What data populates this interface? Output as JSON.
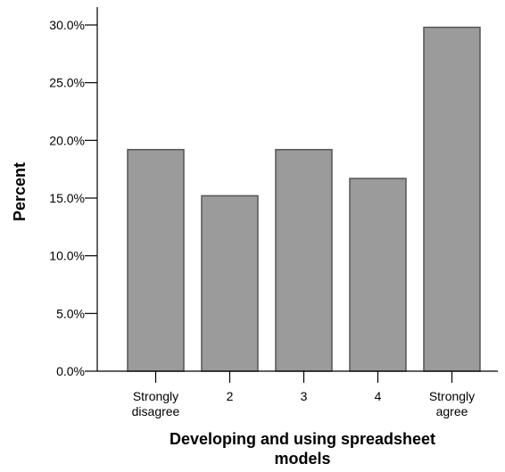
{
  "chart_data": {
    "type": "bar",
    "title": "",
    "categories": [
      [
        "Strongly",
        "disagree"
      ],
      [
        "2"
      ],
      [
        "3"
      ],
      [
        "4"
      ],
      [
        "Strongly",
        "agree"
      ]
    ],
    "values": [
      19.2,
      15.2,
      19.2,
      16.7,
      29.8
    ],
    "xlabel": [
      "Developing and using spreadsheet",
      "models"
    ],
    "ylabel": "Percent",
    "ylim": [
      0,
      30
    ],
    "yticks": [
      {
        "value": 0,
        "label": "0.0%"
      },
      {
        "value": 5,
        "label": "5.0%"
      },
      {
        "value": 10,
        "label": "10.0%"
      },
      {
        "value": 15,
        "label": "15.0%"
      },
      {
        "value": 20,
        "label": "20.0%"
      },
      {
        "value": 25,
        "label": "25.0%"
      },
      {
        "value": 30,
        "label": "30.0%"
      }
    ],
    "grid": false,
    "legend": "none",
    "colors": {
      "bar_fill": "#9b9b9b",
      "bar_stroke": "#555555",
      "axis": "#000000"
    }
  }
}
